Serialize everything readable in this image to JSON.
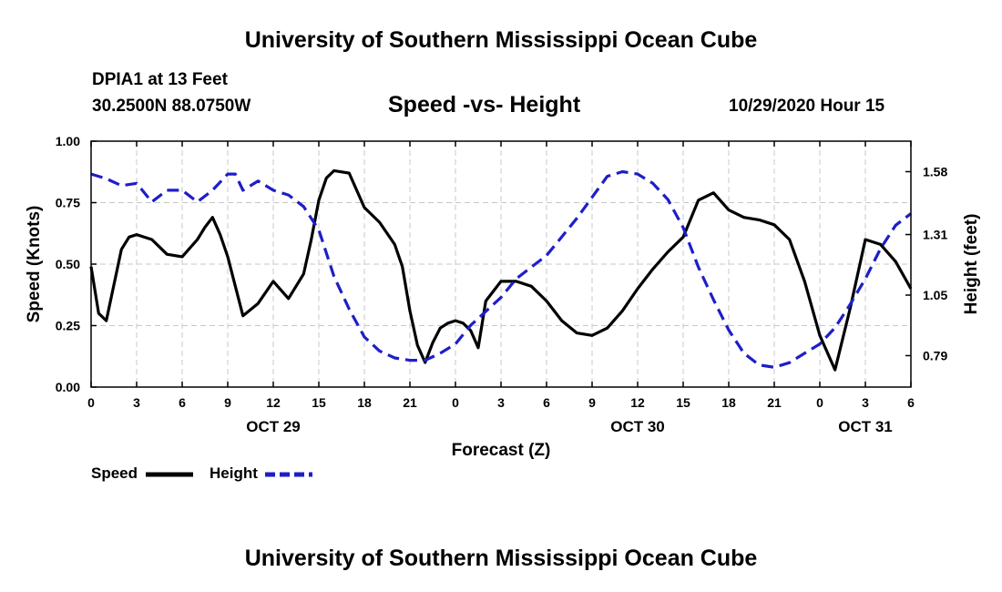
{
  "header": {
    "title": "University of Southern Mississippi Ocean Cube",
    "station": "DPIA1 at 13 Feet",
    "coords": "30.2500N 88.0750W",
    "timestamp": "10/29/2020 Hour 15"
  },
  "footer": {
    "title": "University of Southern Mississippi Ocean Cube"
  },
  "colors": {
    "speed": "#000000",
    "height": "#1e1ec8",
    "grid": "#c8c8c8"
  },
  "chart_data": {
    "type": "line",
    "title": "Speed -vs- Height",
    "xlabel": "Forecast (Z)",
    "ylabel_left": "Speed (Knots)",
    "ylabel_right": "Height (feet)",
    "x_unit": "hours since Oct 29 00Z",
    "xlim": [
      0,
      54
    ],
    "ylim_left": [
      0.0,
      1.0
    ],
    "ylim_right": [
      0.655,
      1.711
    ],
    "x_ticks": [
      0,
      3,
      6,
      9,
      12,
      15,
      18,
      21,
      24,
      27,
      30,
      33,
      36,
      39,
      42,
      45,
      48,
      51,
      54
    ],
    "x_tick_labels": [
      "0",
      "3",
      "6",
      "9",
      "12",
      "15",
      "18",
      "21",
      "0",
      "3",
      "6",
      "9",
      "12",
      "15",
      "18",
      "21",
      "0",
      "3",
      "6"
    ],
    "y_left_ticks": [
      0.0,
      0.25,
      0.5,
      0.75,
      1.0
    ],
    "y_left_tick_labels": [
      "0.00",
      "0.25",
      "0.50",
      "0.75",
      "1.00"
    ],
    "y_right_ticks": [
      0.79,
      1.05,
      1.31,
      1.58
    ],
    "y_right_tick_labels": [
      "0.79",
      "1.05",
      "1.31",
      "1.58"
    ],
    "day_labels": [
      {
        "x": 12,
        "label": "OCT 29"
      },
      {
        "x": 36,
        "label": "OCT 30"
      },
      {
        "x": 51,
        "label": "OCT 31"
      }
    ],
    "grid": true,
    "legend": [
      {
        "name": "Speed",
        "style": "solid"
      },
      {
        "name": "Height",
        "style": "dashed"
      }
    ],
    "series": [
      {
        "name": "Speed",
        "axis": "left",
        "style": "solid",
        "x": [
          0,
          0.5,
          1,
          2,
          2.5,
          3,
          4,
          5,
          6,
          7,
          7.5,
          8,
          8.5,
          9,
          10,
          11,
          12,
          13,
          14,
          14.5,
          15,
          15.5,
          16,
          17,
          18,
          19,
          20,
          20.5,
          21,
          21.5,
          22,
          22.5,
          23,
          23.5,
          24,
          24.5,
          25,
          25.5,
          26,
          27,
          28,
          29,
          30,
          31,
          32,
          33,
          34,
          35,
          36,
          37,
          38,
          39,
          40,
          41,
          42,
          43,
          44,
          45,
          46,
          47,
          48,
          49,
          50,
          51,
          52,
          53,
          54
        ],
        "y": [
          0.49,
          0.3,
          0.27,
          0.56,
          0.61,
          0.62,
          0.6,
          0.54,
          0.53,
          0.6,
          0.65,
          0.69,
          0.62,
          0.53,
          0.29,
          0.34,
          0.43,
          0.36,
          0.46,
          0.6,
          0.76,
          0.85,
          0.88,
          0.87,
          0.73,
          0.67,
          0.58,
          0.49,
          0.31,
          0.17,
          0.1,
          0.18,
          0.24,
          0.26,
          0.27,
          0.26,
          0.23,
          0.16,
          0.35,
          0.43,
          0.43,
          0.41,
          0.35,
          0.27,
          0.22,
          0.21,
          0.24,
          0.31,
          0.4,
          0.48,
          0.55,
          0.61,
          0.76,
          0.79,
          0.72,
          0.69,
          0.68,
          0.66,
          0.6,
          0.43,
          0.21,
          0.07,
          0.32,
          0.6,
          0.58,
          0.51,
          0.4
        ]
      },
      {
        "name": "Height",
        "axis": "right",
        "style": "dashed",
        "x": [
          0,
          1,
          2,
          3,
          4,
          5,
          6,
          7,
          8,
          9,
          9.5,
          10,
          11,
          12,
          13,
          14,
          15,
          16,
          17,
          18,
          19,
          20,
          21,
          21.5,
          22,
          23,
          24,
          25,
          26,
          27,
          28,
          29,
          30,
          31,
          32,
          33,
          34,
          35,
          36,
          37,
          38,
          39,
          40,
          41,
          42,
          43,
          44,
          45,
          46,
          46.5,
          47,
          48,
          49,
          50,
          51,
          52,
          53,
          54
        ],
        "y": [
          1.57,
          1.55,
          1.52,
          1.53,
          1.45,
          1.5,
          1.5,
          1.45,
          1.5,
          1.57,
          1.57,
          1.5,
          1.54,
          1.5,
          1.48,
          1.43,
          1.33,
          1.13,
          0.99,
          0.87,
          0.81,
          0.78,
          0.77,
          0.77,
          0.77,
          0.8,
          0.84,
          0.92,
          0.98,
          1.04,
          1.12,
          1.17,
          1.22,
          1.3,
          1.38,
          1.47,
          1.56,
          1.58,
          1.57,
          1.53,
          1.46,
          1.34,
          1.17,
          1.03,
          0.9,
          0.8,
          0.75,
          0.74,
          0.76,
          0.78,
          0.8,
          0.84,
          0.91,
          1.01,
          1.12,
          1.25,
          1.35,
          1.4
        ]
      }
    ]
  }
}
